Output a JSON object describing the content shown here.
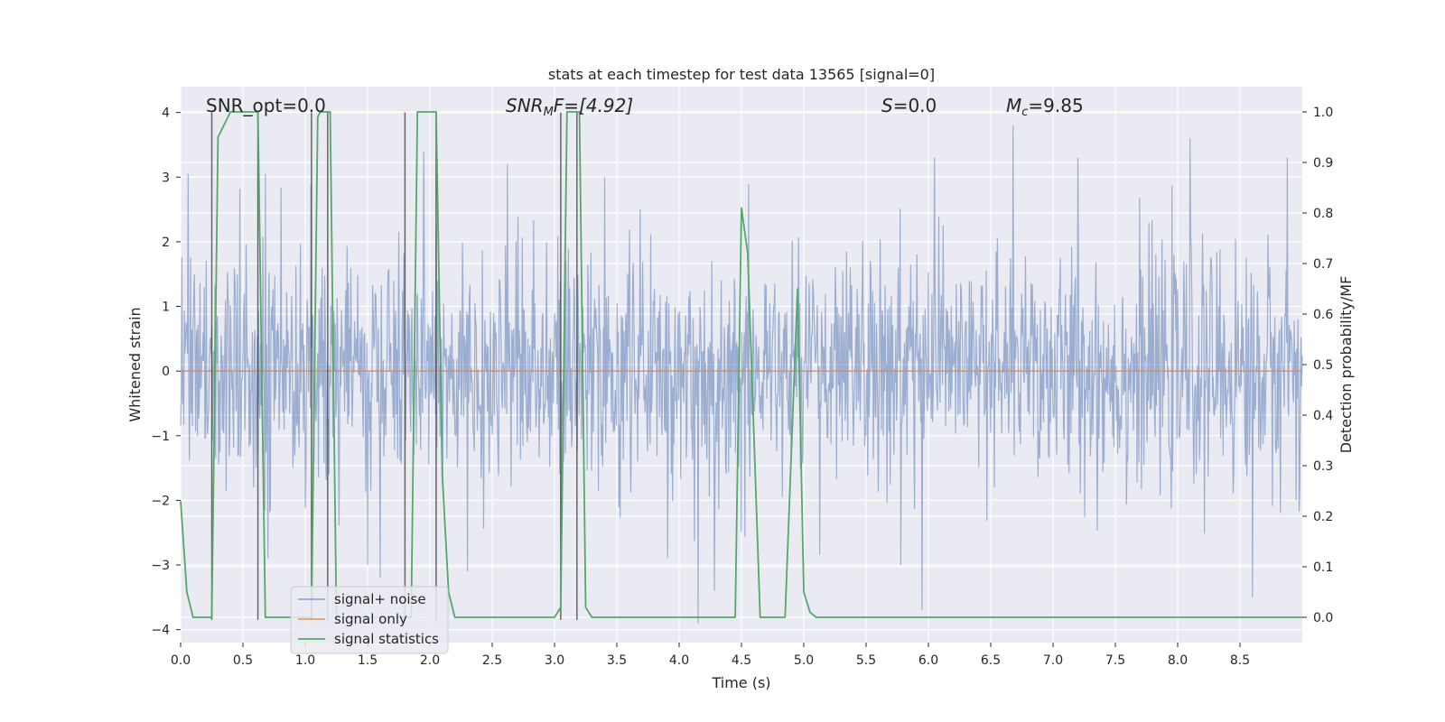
{
  "chart_data": {
    "type": "line",
    "title": "stats at each timestep for test data 13565 [signal=0]",
    "xlabel": "Time (s)",
    "ylabel": "Whitened strain",
    "y2label": "Detection probability/MF",
    "xlim": [
      0,
      9.0
    ],
    "ylim": [
      -4.2,
      4.4
    ],
    "y2lim": [
      -0.05,
      1.05
    ],
    "xticks": [
      0.0,
      0.5,
      1.0,
      1.5,
      2.0,
      2.5,
      3.0,
      3.5,
      4.0,
      4.5,
      5.0,
      5.5,
      6.0,
      6.5,
      7.0,
      7.5,
      8.0,
      8.5
    ],
    "yticks": [
      -4,
      -3,
      -2,
      -1,
      0,
      1,
      2,
      3,
      4
    ],
    "y2ticks": [
      0.0,
      0.1,
      0.2,
      0.3,
      0.4,
      0.5,
      0.6,
      0.7,
      0.8,
      0.9,
      1.0
    ],
    "annotations": {
      "snr_opt": "SNR_opt=0.0",
      "snr_mf_base": "SNR",
      "snr_mf_sub": "M",
      "snr_mf_rest": "F=[4.92]",
      "s_base": "S",
      "s_rest": "=0.0",
      "mc_base": "M",
      "mc_sub": "c",
      "mc_rest": "=9.85"
    },
    "legend": {
      "position": "lower-left",
      "entries": [
        {
          "label": "signal+ noise",
          "color": "#4c72b0"
        },
        {
          "label": "signal only",
          "color": "#dd8452"
        },
        {
          "label": "signal statistics",
          "color": "#55a868"
        }
      ]
    },
    "series": [
      {
        "name": "signal+ noise",
        "axis": "left",
        "color": "#4c72b0",
        "note": "whitened strain noise, ~1 sigma, peaks near +/-3.5",
        "peaks": [
          {
            "x": 0.06,
            "y": 3.05
          },
          {
            "x": 0.68,
            "y": 3.05
          },
          {
            "x": 0.7,
            "y": -2.9
          },
          {
            "x": 1.5,
            "y": -3.0
          },
          {
            "x": 1.6,
            "y": -3.2
          },
          {
            "x": 1.95,
            "y": 3.4
          },
          {
            "x": 2.3,
            "y": -3.1
          },
          {
            "x": 2.62,
            "y": 3.2
          },
          {
            "x": 3.05,
            "y": -3.3
          },
          {
            "x": 3.4,
            "y": 3.0
          },
          {
            "x": 4.15,
            "y": -3.9
          },
          {
            "x": 4.28,
            "y": -3.4
          },
          {
            "x": 5.78,
            "y": -3.0
          },
          {
            "x": 5.95,
            "y": -3.7
          },
          {
            "x": 6.05,
            "y": 3.3
          },
          {
            "x": 6.68,
            "y": 3.8
          },
          {
            "x": 7.2,
            "y": 3.3
          },
          {
            "x": 8.1,
            "y": 3.6
          },
          {
            "x": 8.6,
            "y": -3.5
          },
          {
            "x": 8.88,
            "y": 3.3
          }
        ]
      },
      {
        "name": "signal only",
        "axis": "left",
        "color": "#dd8452",
        "x": [
          0.0,
          9.0
        ],
        "y": [
          0.0,
          0.0
        ]
      },
      {
        "name": "signal statistics",
        "axis": "right",
        "color": "#55a868",
        "x": [
          0.0,
          0.05,
          0.1,
          0.2,
          0.25,
          0.3,
          0.4,
          0.5,
          0.6,
          0.62,
          0.68,
          0.7,
          0.8,
          1.0,
          1.05,
          1.1,
          1.12,
          1.15,
          1.2,
          1.25,
          1.5,
          1.8,
          1.85,
          1.9,
          1.95,
          2.0,
          2.05,
          2.1,
          2.15,
          2.2,
          2.5,
          3.0,
          3.05,
          3.1,
          3.15,
          3.2,
          3.25,
          3.3,
          3.5,
          3.8,
          4.0,
          4.2,
          4.45,
          4.5,
          4.55,
          4.65,
          4.8,
          4.85,
          4.95,
          5.0,
          5.05,
          5.1,
          5.5,
          6.0,
          7.0,
          8.0,
          9.0
        ],
        "y": [
          0.23,
          0.05,
          0.0,
          0.0,
          0.0,
          0.95,
          1.0,
          1.0,
          1.0,
          1.0,
          0.0,
          0.0,
          0.0,
          0.0,
          0.0,
          0.99,
          1.0,
          1.0,
          1.0,
          0.0,
          0.0,
          0.0,
          0.0,
          1.0,
          1.0,
          1.0,
          1.0,
          0.28,
          0.05,
          0.0,
          0.0,
          0.0,
          0.02,
          1.0,
          1.0,
          1.0,
          0.02,
          0.0,
          0.0,
          0.0,
          0.0,
          0.0,
          0.0,
          0.81,
          0.72,
          0.0,
          0.0,
          0.0,
          0.65,
          0.05,
          0.01,
          0.0,
          0.0,
          0.0,
          0.0,
          0.0,
          0.0
        ]
      }
    ],
    "vertical_lines": [
      {
        "x": 0.25,
        "y": [
          -3.85,
          4.0
        ]
      },
      {
        "x": 0.62,
        "y": [
          -3.85,
          4.0
        ]
      },
      {
        "x": 1.05,
        "y": [
          -3.85,
          4.0
        ]
      },
      {
        "x": 1.18,
        "y": [
          -3.85,
          4.0
        ]
      },
      {
        "x": 1.8,
        "y": [
          -3.85,
          4.0
        ]
      },
      {
        "x": 2.05,
        "y": [
          -3.85,
          4.0
        ]
      },
      {
        "x": 3.05,
        "y": [
          -3.85,
          4.0
        ]
      },
      {
        "x": 3.18,
        "y": [
          -3.85,
          4.0
        ]
      }
    ]
  }
}
